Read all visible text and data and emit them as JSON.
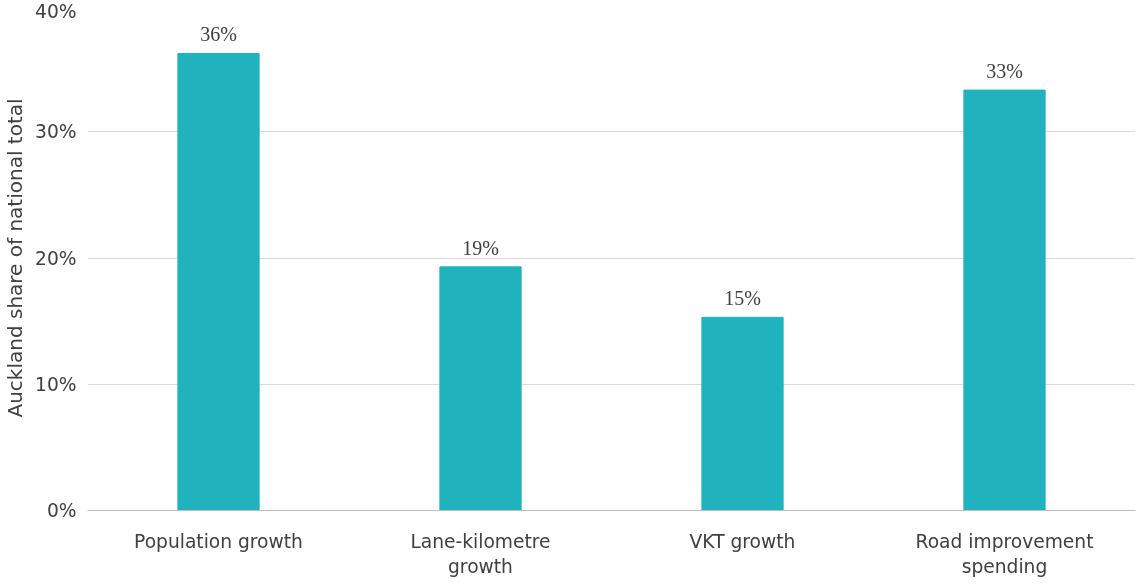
{
  "chart_data": {
    "type": "bar",
    "ylabel": "Auckland share of national total",
    "categories": [
      "Population growth",
      "Lane-kilometre growth",
      "VKT growth",
      "Road improvement spending"
    ],
    "values": [
      36.2,
      19.3,
      15.3,
      33.3
    ],
    "value_labels": [
      "36%",
      "19%",
      "15%",
      "33%"
    ],
    "color": "#20b2bd",
    "ylim": [
      0,
      40
    ],
    "yticks": [
      {
        "value": 0,
        "label": "0%"
      },
      {
        "value": 10,
        "label": "10%"
      },
      {
        "value": 20,
        "label": "20%"
      },
      {
        "value": 30,
        "label": "30%"
      },
      {
        "value": 40,
        "label": "40%"
      }
    ],
    "grid": "y"
  }
}
